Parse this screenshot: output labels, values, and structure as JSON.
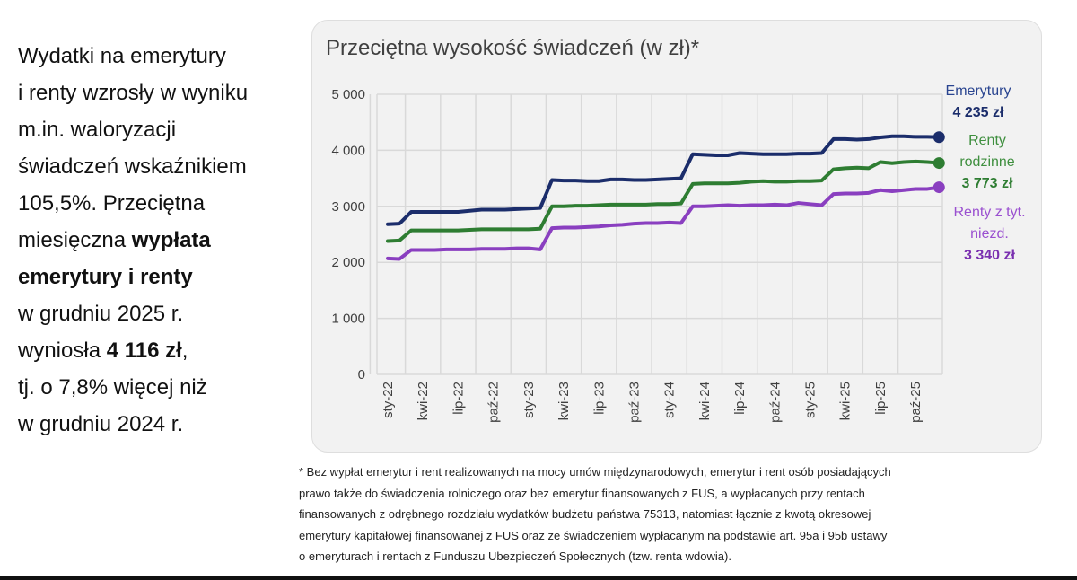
{
  "left_text": {
    "line1": "Wydatki na emerytury",
    "line2": "i renty wzrosły w wyniku",
    "line3": "m.in. waloryzacji",
    "line4": "świadczeń wskaźnikiem",
    "line5": "105,5%. Przeciętna",
    "line6_a": "miesięczna ",
    "line6_b": "wypłata",
    "line7": "emerytury i renty",
    "line8": "w grudniu 2025 r.",
    "line9_a": "wyniosła ",
    "line9_b": "4 116 zł",
    "line9_c": ",",
    "line10": "tj. o 7,8% więcej niż",
    "line11": "w grudniu 2024 r."
  },
  "chart_data": {
    "type": "line",
    "title": "Przeciętna wysokość świadczeń (w zł)*",
    "xlabel": "",
    "ylabel": "",
    "ylim": [
      0,
      5000
    ],
    "y_ticks": [
      "0",
      "1 000",
      "2 000",
      "3 000",
      "4 000",
      "5 000"
    ],
    "y_tick_values": [
      0,
      1000,
      2000,
      3000,
      4000,
      5000
    ],
    "x_tick_labels": [
      "sty-22",
      "kwi-22",
      "lip-22",
      "paź-22",
      "sty-23",
      "kwi-23",
      "lip-23",
      "paź-23",
      "sty-24",
      "kwi-24",
      "lip-24",
      "paź-24",
      "sty-25",
      "kwi-25",
      "lip-25",
      "paź-25"
    ],
    "x_range": [
      "sty-22",
      "gru-25"
    ],
    "grid": true,
    "legend": "right, end-of-line labels",
    "series": [
      {
        "name": "Emerytury",
        "color": "#1b2d6b",
        "end_label": "4 235 zł",
        "values": [
          2680,
          2690,
          2900,
          2900,
          2900,
          2900,
          2900,
          2920,
          2940,
          2940,
          2940,
          2950,
          2960,
          2970,
          3470,
          3460,
          3460,
          3450,
          3450,
          3480,
          3480,
          3470,
          3470,
          3480,
          3490,
          3500,
          3930,
          3920,
          3910,
          3910,
          3950,
          3940,
          3930,
          3930,
          3930,
          3940,
          3940,
          3950,
          4200,
          4200,
          4190,
          4200,
          4230,
          4250,
          4250,
          4240,
          4240,
          4235
        ]
      },
      {
        "name": "Renty rodzinne",
        "name_lines": [
          "Renty",
          "rodzinne"
        ],
        "color": "#2e7d32",
        "end_label": "3 773 zł",
        "values": [
          2380,
          2390,
          2570,
          2570,
          2570,
          2570,
          2570,
          2580,
          2590,
          2590,
          2590,
          2590,
          2590,
          2600,
          3000,
          3000,
          3010,
          3010,
          3020,
          3030,
          3030,
          3030,
          3030,
          3040,
          3040,
          3050,
          3400,
          3410,
          3410,
          3410,
          3420,
          3440,
          3450,
          3440,
          3440,
          3450,
          3450,
          3460,
          3660,
          3680,
          3690,
          3680,
          3790,
          3770,
          3790,
          3800,
          3790,
          3773
        ]
      },
      {
        "name": "Renty z tyt. niezd.",
        "name_lines": [
          "Renty z tyt.",
          "niezd."
        ],
        "color": "#8a3fc0",
        "end_label": "3 340 zł",
        "values": [
          2070,
          2060,
          2220,
          2220,
          2220,
          2230,
          2230,
          2230,
          2240,
          2240,
          2240,
          2250,
          2250,
          2230,
          2610,
          2620,
          2620,
          2630,
          2640,
          2660,
          2670,
          2690,
          2700,
          2700,
          2710,
          2700,
          3000,
          3000,
          3010,
          3020,
          3010,
          3020,
          3020,
          3030,
          3020,
          3060,
          3040,
          3020,
          3220,
          3230,
          3230,
          3240,
          3290,
          3270,
          3290,
          3310,
          3310,
          3340
        ]
      }
    ]
  },
  "footnote": [
    "* Bez wypłat emerytur i rent realizowanych na mocy umów międzynarodowych, emerytur i rent osób posiadających",
    "prawo także do świadczenia rolniczego oraz bez emerytur finansowanych z FUS, a wypłacanych przy rentach",
    "finansowanych z odrębnego rozdziału wydatków budżetu państwa 75313, natomiast łącznie z kwotą okresowej",
    "emerytury kapitałowej finansowanej z FUS oraz ze świadczeniem wypłacanym na podstawie art. 95a i 95b ustawy",
    "o emeryturach i rentach z Funduszu Ubezpieczeń Społecznych (tzw. renta wdowia)."
  ]
}
